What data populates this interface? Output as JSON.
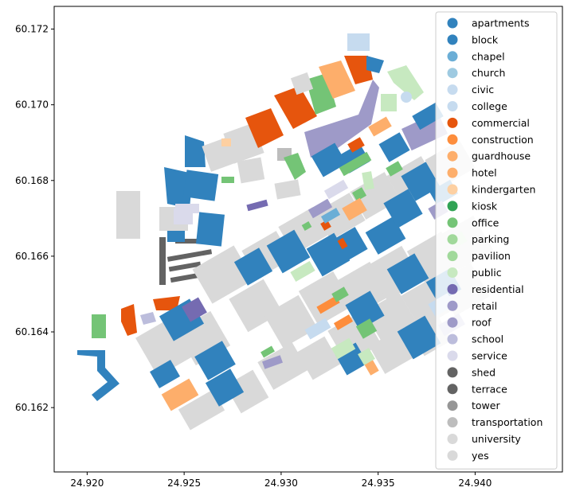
{
  "chart_data": {
    "type": "map",
    "title": "",
    "xlabel": "",
    "ylabel": "",
    "xlim": [
      24.9183,
      24.9445
    ],
    "ylim": [
      60.1603,
      60.1726
    ],
    "x_ticks": [
      "24.920",
      "24.925",
      "24.930",
      "24.935",
      "24.940"
    ],
    "y_ticks": [
      "60.162",
      "60.164",
      "60.166",
      "60.168",
      "60.170",
      "60.172"
    ],
    "legend_position": "top-right",
    "legend": [
      {
        "label": "apartments",
        "color": "#3182bd"
      },
      {
        "label": "block",
        "color": "#3182bd"
      },
      {
        "label": "chapel",
        "color": "#6baed6"
      },
      {
        "label": "church",
        "color": "#9ecae1"
      },
      {
        "label": "civic",
        "color": "#c6dbef"
      },
      {
        "label": "college",
        "color": "#c6dbef"
      },
      {
        "label": "commercial",
        "color": "#e6550d"
      },
      {
        "label": "construction",
        "color": "#fd8d3c"
      },
      {
        "label": "guardhouse",
        "color": "#fdae6b"
      },
      {
        "label": "hotel",
        "color": "#fdae6b"
      },
      {
        "label": "kindergarten",
        "color": "#fdd0a2"
      },
      {
        "label": "kiosk",
        "color": "#31a354"
      },
      {
        "label": "office",
        "color": "#74c476"
      },
      {
        "label": "parking",
        "color": "#a1d99b"
      },
      {
        "label": "pavilion",
        "color": "#a1d99b"
      },
      {
        "label": "public",
        "color": "#c7e9c0"
      },
      {
        "label": "residential",
        "color": "#756bb1"
      },
      {
        "label": "retail",
        "color": "#9e9ac8"
      },
      {
        "label": "roof",
        "color": "#9e9ac8"
      },
      {
        "label": "school",
        "color": "#bcbddc"
      },
      {
        "label": "service",
        "color": "#dadaeb"
      },
      {
        "label": "shed",
        "color": "#636363"
      },
      {
        "label": "terrace",
        "color": "#636363"
      },
      {
        "label": "tower",
        "color": "#969696"
      },
      {
        "label": "transportation",
        "color": "#bdbdbd"
      },
      {
        "label": "university",
        "color": "#d9d9d9"
      },
      {
        "label": "yes",
        "color": "#d9d9d9"
      }
    ]
  }
}
